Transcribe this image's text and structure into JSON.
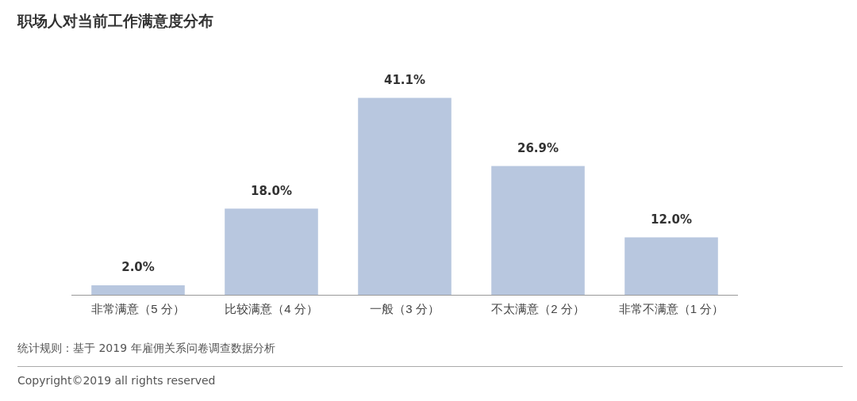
{
  "chart_data": {
    "type": "bar",
    "title": "职场人对当前工作满意度分布",
    "categories": [
      "非常满意（5 分）",
      "比较满意（4 分）",
      "一般（3 分）",
      "不太满意（2 分）",
      "非常不满意（1 分）"
    ],
    "values": [
      2.0,
      18.0,
      41.1,
      26.9,
      12.0
    ],
    "value_labels": [
      "2.0%",
      "18.0%",
      "41.1%",
      "26.9%",
      "12.0%"
    ],
    "color": "#b8c7df",
    "grid": false,
    "legend": false,
    "annotations": [
      "统计规则：基于 2019 年雇佣关系问卷调查数据分析",
      "Copyright©2019 all rights reserved"
    ]
  }
}
